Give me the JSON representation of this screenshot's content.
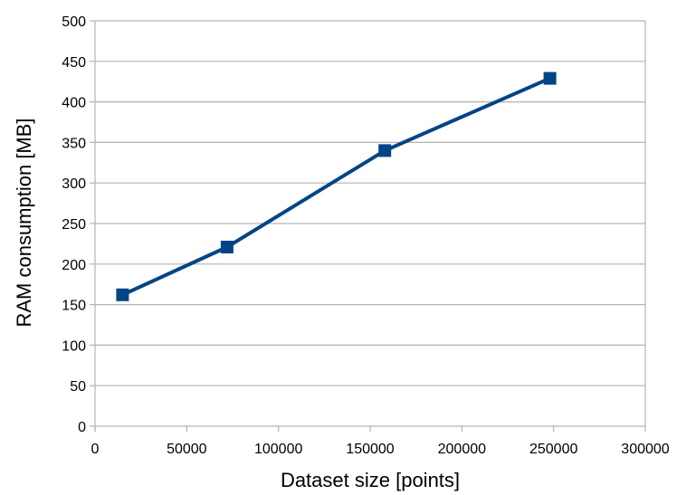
{
  "chart_data": {
    "type": "line",
    "title": "",
    "xlabel": "Dataset size [points]",
    "ylabel": "RAM consumption [MB]",
    "xlim": [
      0,
      300000
    ],
    "ylim": [
      0,
      500
    ],
    "xticks": [
      0,
      50000,
      100000,
      150000,
      200000,
      250000,
      300000
    ],
    "yticks": [
      0,
      50,
      100,
      150,
      200,
      250,
      300,
      350,
      400,
      450,
      500
    ],
    "grid": "horizontal",
    "legend": "none",
    "marker": "square",
    "series": [
      {
        "color": "#004586",
        "points": [
          {
            "x": 15000,
            "y": 162
          },
          {
            "x": 72000,
            "y": 221
          },
          {
            "x": 158000,
            "y": 340
          },
          {
            "x": 248000,
            "y": 429
          }
        ]
      }
    ],
    "colors": {
      "series": "#004586",
      "grid": "#b3b3b3",
      "axis": "#b3b3b3",
      "background": "#ffffff"
    }
  }
}
